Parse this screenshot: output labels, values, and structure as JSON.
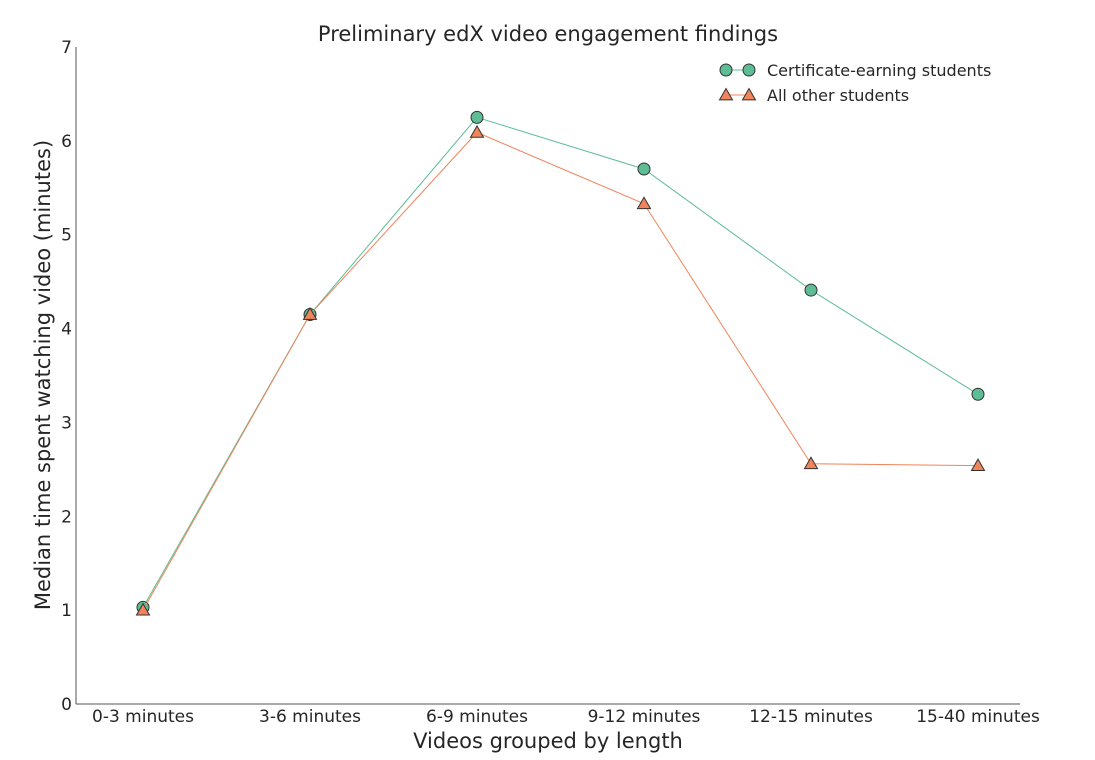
{
  "chart_data": {
    "type": "line",
    "title": "Preliminary edX video engagement findings",
    "xlabel": "Videos grouped by length",
    "ylabel": "Median time spent watching video (minutes)",
    "categories": [
      "0-3 minutes",
      "3-6 minutes",
      "6-9 minutes",
      "9-12 minutes",
      "12-15 minutes",
      "15-40 minutes"
    ],
    "ylim": [
      0,
      7
    ],
    "yticks": [
      "0",
      "1",
      "2",
      "3",
      "4",
      "5",
      "6",
      "7"
    ],
    "grid": false,
    "legend_position": "top-right",
    "series": [
      {
        "name": "Certificate-earning students",
        "values": [
          1.03,
          4.15,
          6.25,
          5.7,
          4.41,
          3.3
        ],
        "color": "#5fbd96",
        "marker": "circle"
      },
      {
        "name": "All other students",
        "values": [
          1.0,
          4.15,
          6.09,
          5.33,
          2.56,
          2.54
        ],
        "color": "#f0845a",
        "marker": "triangle"
      }
    ]
  }
}
